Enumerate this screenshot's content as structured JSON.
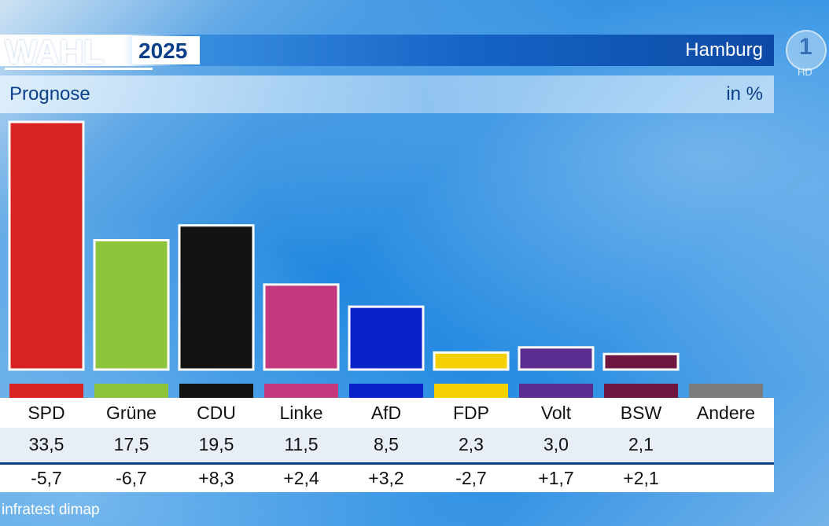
{
  "header": {
    "brand": "WAHL",
    "year": "2025",
    "region": "Hamburg",
    "subtitle": "Prognose",
    "unit": "in %",
    "channel_logo": "1",
    "channel_badge": "HD"
  },
  "source": "infratest dimap",
  "chart_data": {
    "type": "bar",
    "title": "Prognose",
    "unit": "in %",
    "categories": [
      "SPD",
      "Grüne",
      "CDU",
      "Linke",
      "AfD",
      "FDP",
      "Volt",
      "BSW",
      "Andere"
    ],
    "values": [
      33.5,
      17.5,
      19.5,
      11.5,
      8.5,
      2.3,
      3.0,
      2.1,
      null
    ],
    "value_labels": [
      "33,5",
      "17,5",
      "19,5",
      "11,5",
      "8,5",
      "2,3",
      "3,0",
      "2,1",
      ""
    ],
    "changes": [
      -5.7,
      -6.7,
      8.3,
      2.4,
      3.2,
      -2.7,
      1.7,
      2.1,
      null
    ],
    "change_labels": [
      "-5,7",
      "-6,7",
      "+8,3",
      "+2,4",
      "+3,2",
      "-2,7",
      "+1,7",
      "+2,1",
      ""
    ],
    "colors": [
      "#d92222",
      "#8cc43c",
      "#121212",
      "#c4397e",
      "#0a22c9",
      "#f5d000",
      "#5b2d91",
      "#6e1540",
      "#7c7c7c"
    ],
    "grid": false
  }
}
